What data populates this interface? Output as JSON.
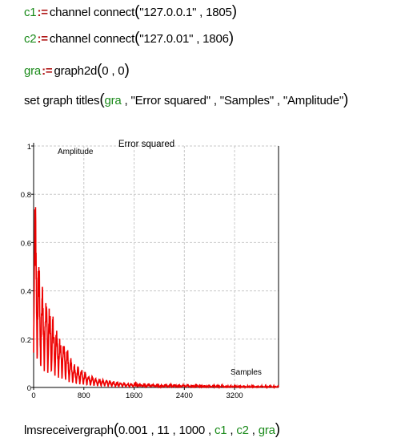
{
  "lines": {
    "c1": {
      "var": "c1",
      "assign": ":=",
      "func": "channel connect",
      "open": "(",
      "arg1": "\"127.0.0.1\"",
      "sep": " , ",
      "arg2": "1805",
      "close": ")"
    },
    "c2": {
      "var": "c2",
      "assign": ":=",
      "func": "channel connect",
      "open": "(",
      "arg1": "\"127.0.01\"",
      "sep": " , ",
      "arg2": "1806",
      "close": ")"
    },
    "gra": {
      "var": "gra",
      "assign": ":=",
      "func": "graph2d",
      "open": "(",
      "args": "0 , 0",
      "close": ")"
    },
    "titles": {
      "func": "set graph titles",
      "open": "(",
      "var": "gra",
      "rest": " , \"Error squared\" , \"Samples\" , \"Amplitude\"",
      "close": ")"
    },
    "lms": {
      "func": "lmsreceivergraph",
      "open": "(",
      "args": "0.001 , 11 , 1000 , ",
      "v1": "c1",
      "s1": " , ",
      "v2": "c2",
      "s2": " , ",
      "v3": "gra",
      "close": ")"
    }
  },
  "chart_data": {
    "type": "line",
    "title": "Error squared",
    "xlabel": "Samples",
    "ylabel": "Amplitude",
    "xlim": [
      0,
      3900
    ],
    "ylim": [
      0,
      1
    ],
    "x_ticks": [
      "0",
      "800",
      "1600",
      "2400",
      "3200"
    ],
    "y_ticks": [
      "0",
      "0.2",
      "0.4",
      "0.6",
      "0.8",
      "1"
    ],
    "grid": true,
    "series_color": "#ee0000",
    "series": [
      {
        "x": [
          0,
          20,
          40,
          60,
          80,
          100,
          150,
          200,
          250,
          300,
          350,
          400,
          450,
          500,
          550,
          600,
          650,
          700,
          750,
          800,
          900,
          1000,
          1100,
          1200,
          1300,
          1400,
          1500,
          1600,
          1800,
          2000,
          2200,
          2400,
          2600,
          2800,
          3000,
          3200,
          3400,
          3600,
          3800,
          3900
        ],
        "y": [
          0.96,
          0.85,
          0.78,
          0.65,
          0.58,
          0.48,
          0.45,
          0.38,
          0.35,
          0.32,
          0.28,
          0.25,
          0.2,
          0.18,
          0.16,
          0.12,
          0.1,
          0.09,
          0.08,
          0.07,
          0.05,
          0.04,
          0.035,
          0.03,
          0.025,
          0.02,
          0.018,
          0.015,
          0.012,
          0.01,
          0.01,
          0.008,
          0.008,
          0.007,
          0.006,
          0.006,
          0.005,
          0.005,
          0.005,
          0.004
        ]
      }
    ]
  }
}
